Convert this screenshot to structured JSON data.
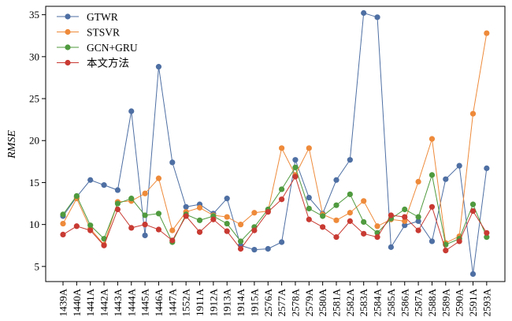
{
  "chart_data": {
    "type": "line",
    "title": "",
    "xlabel": "",
    "ylabel": "RMSE",
    "ylim": [
      3.2,
      36
    ],
    "yticks": [
      5,
      10,
      15,
      20,
      25,
      30,
      35
    ],
    "grid": false,
    "legend_position": "top-left",
    "categories": [
      "1439A",
      "1440A",
      "1441A",
      "1442A",
      "1443A",
      "1444A",
      "1445A",
      "1446A",
      "1447A",
      "1552A",
      "1911A",
      "1912A",
      "1913A",
      "1914A",
      "1915A",
      "2576A",
      "2577A",
      "2578A",
      "2579A",
      "2580A",
      "2581A",
      "2582A",
      "2583A",
      "2584A",
      "2585A",
      "2586A",
      "2587A",
      "2588A",
      "2589A",
      "2590A",
      "2591A",
      "2593A"
    ],
    "series": [
      {
        "name": "GTWR",
        "color": "#4e6fa3",
        "values": [
          11.0,
          13.3,
          15.3,
          14.7,
          14.1,
          23.5,
          8.7,
          28.8,
          17.4,
          12.1,
          12.4,
          11.3,
          13.1,
          7.5,
          7.0,
          7.1,
          7.9,
          17.7,
          13.2,
          11.3,
          15.3,
          17.7,
          35.2,
          34.7,
          7.3,
          9.9,
          10.4,
          8.0,
          15.4,
          17.0,
          4.1,
          16.7
        ]
      },
      {
        "name": "STSVR",
        "color": "#ee8a3a",
        "values": [
          10.1,
          13.1,
          9.5,
          7.6,
          12.7,
          12.8,
          13.7,
          15.5,
          9.3,
          11.5,
          12.0,
          11.1,
          10.9,
          10.0,
          11.4,
          11.6,
          19.1,
          15.9,
          19.1,
          11.2,
          10.5,
          11.4,
          12.8,
          9.8,
          10.6,
          10.4,
          15.1,
          20.2,
          7.8,
          8.6,
          23.2,
          32.8
        ]
      },
      {
        "name": "GCN+GRU",
        "color": "#4f9a3e",
        "values": [
          11.2,
          13.4,
          9.9,
          8.3,
          12.5,
          13.1,
          11.1,
          11.3,
          7.9,
          11.2,
          10.5,
          11.0,
          10.1,
          8.0,
          9.7,
          11.8,
          14.2,
          16.8,
          11.9,
          11.0,
          12.3,
          13.6,
          10.3,
          9.0,
          10.7,
          11.8,
          10.9,
          15.9,
          7.6,
          8.3,
          12.4,
          8.5
        ]
      },
      {
        "name": "本文方法",
        "color": "#c83a32",
        "values": [
          8.8,
          9.8,
          9.3,
          7.5,
          11.8,
          9.6,
          10.0,
          9.4,
          8.1,
          11.0,
          9.1,
          10.6,
          9.2,
          7.1,
          9.3,
          11.5,
          13.0,
          15.7,
          10.6,
          9.7,
          8.5,
          10.4,
          8.9,
          8.5,
          11.1,
          10.9,
          9.3,
          12.1,
          6.9,
          8.0,
          11.6,
          9.0
        ]
      }
    ]
  }
}
